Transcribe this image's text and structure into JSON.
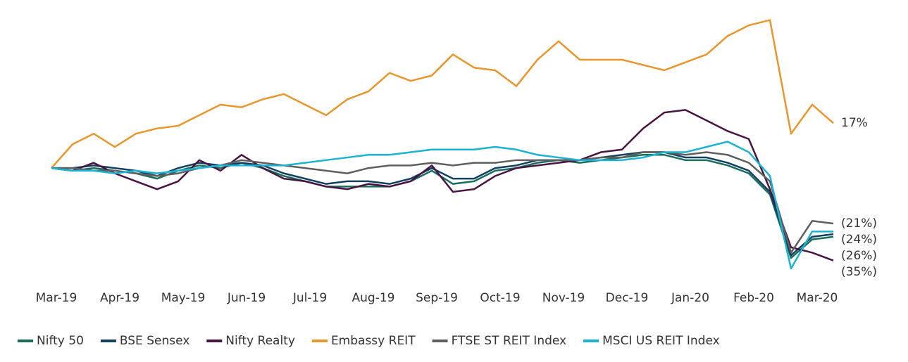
{
  "chart_data": {
    "type": "line",
    "categories": [
      "Mar-19",
      null,
      null,
      "Apr-19",
      null,
      null,
      "May-19",
      null,
      null,
      "Jun-19",
      null,
      null,
      "Jul-19",
      null,
      null,
      "Aug-19",
      null,
      null,
      "Sep-19",
      null,
      null,
      "Oct-19",
      null,
      null,
      "Nov-19",
      null,
      null,
      "Dec-19",
      null,
      null,
      "Jan-20",
      null,
      null,
      "Feb-20",
      null,
      null,
      "Mar-20",
      null
    ],
    "ylim": [
      -42,
      62
    ],
    "series": [
      {
        "name": "Nifty 50",
        "color": "#1a6e5c",
        "values": [
          0,
          -1,
          0,
          -1,
          -2,
          -4,
          -1,
          1,
          0,
          2,
          0,
          -3,
          -5,
          -7,
          -7,
          -7,
          -7,
          -5,
          -1,
          -6,
          -5,
          -1,
          0,
          2,
          3,
          2,
          3,
          4,
          5,
          5,
          3,
          3,
          1,
          -2,
          -10,
          -34,
          -27,
          -26
        ],
        "value_labels": [
          null,
          null,
          null,
          null,
          null,
          null,
          null,
          null,
          null,
          null,
          null,
          null,
          null,
          null,
          null,
          null,
          null,
          null,
          null,
          null,
          null,
          null,
          null,
          null,
          null,
          null,
          null,
          null,
          null,
          null,
          null,
          null,
          null,
          null,
          null,
          null,
          null,
          "(26%)"
        ]
      },
      {
        "name": "BSE Sensex",
        "color": "#13405f",
        "values": [
          0,
          0,
          1,
          0,
          -1,
          -3,
          0,
          2,
          1,
          2,
          1,
          -2,
          -4,
          -6,
          -5,
          -5,
          -6,
          -4,
          0,
          -4,
          -4,
          0,
          1,
          3,
          3,
          3,
          4,
          5,
          6,
          6,
          4,
          4,
          2,
          -1,
          -9,
          -33,
          -26,
          -25
        ]
      },
      {
        "name": "Nifty Realty",
        "color": "#4a1440",
        "values": [
          0,
          -1,
          2,
          -2,
          -5,
          -8,
          -5,
          3,
          -1,
          5,
          0,
          -4,
          -5,
          -7,
          -8,
          -6,
          -7,
          -5,
          1,
          -9,
          -8,
          -3,
          0,
          1,
          2,
          3,
          6,
          7,
          15,
          21,
          22,
          18,
          14,
          11,
          -8,
          -30,
          -32,
          -35
        ],
        "value_labels": [
          null,
          null,
          null,
          null,
          null,
          null,
          null,
          null,
          null,
          null,
          null,
          null,
          null,
          null,
          null,
          null,
          null,
          null,
          null,
          null,
          null,
          null,
          null,
          null,
          null,
          null,
          null,
          null,
          null,
          null,
          null,
          null,
          null,
          null,
          null,
          null,
          null,
          "(35%)"
        ]
      },
      {
        "name": "Embassy REIT",
        "color": "#e8962e",
        "values": [
          0,
          9,
          13,
          8,
          13,
          15,
          16,
          20,
          24,
          23,
          26,
          28,
          24,
          20,
          26,
          29,
          36,
          33,
          35,
          43,
          38,
          37,
          31,
          41,
          48,
          41,
          41,
          41,
          39,
          37,
          40,
          43,
          50,
          54,
          56,
          13,
          24,
          17
        ],
        "value_labels": [
          null,
          null,
          null,
          null,
          null,
          null,
          null,
          null,
          null,
          null,
          null,
          null,
          null,
          null,
          null,
          null,
          null,
          null,
          null,
          null,
          null,
          null,
          null,
          null,
          null,
          null,
          null,
          null,
          null,
          null,
          null,
          null,
          null,
          null,
          null,
          null,
          null,
          "17%"
        ]
      },
      {
        "name": "FTSE ST REIT Index",
        "color": "#5f5f5f",
        "values": [
          0,
          0,
          -1,
          -1,
          -2,
          -3,
          -2,
          0,
          1,
          3,
          2,
          1,
          0,
          -1,
          -2,
          0,
          1,
          1,
          2,
          1,
          2,
          2,
          3,
          3,
          3,
          3,
          4,
          4,
          6,
          6,
          5,
          6,
          5,
          2,
          -5,
          -32,
          -20,
          -21
        ],
        "value_labels": [
          null,
          null,
          null,
          null,
          null,
          null,
          null,
          null,
          null,
          null,
          null,
          null,
          null,
          null,
          null,
          null,
          null,
          null,
          null,
          null,
          null,
          null,
          null,
          null,
          null,
          null,
          null,
          null,
          null,
          null,
          null,
          null,
          null,
          null,
          null,
          null,
          null,
          "(21%)"
        ]
      },
      {
        "name": "MSCI US REIT Index",
        "color": "#1bb3d1",
        "values": [
          0,
          -1,
          -1,
          -2,
          -1,
          -2,
          -1,
          0,
          1,
          1,
          1,
          1,
          2,
          3,
          4,
          5,
          5,
          6,
          7,
          7,
          7,
          8,
          7,
          5,
          4,
          3,
          3,
          3,
          4,
          6,
          6,
          8,
          10,
          6,
          -3,
          -38,
          -24,
          -24
        ],
        "value_labels": [
          null,
          null,
          null,
          null,
          null,
          null,
          null,
          null,
          null,
          null,
          null,
          null,
          null,
          null,
          null,
          null,
          null,
          null,
          null,
          null,
          null,
          null,
          null,
          null,
          null,
          null,
          null,
          null,
          null,
          null,
          null,
          null,
          null,
          null,
          null,
          null,
          null,
          "(24%)"
        ]
      }
    ]
  }
}
